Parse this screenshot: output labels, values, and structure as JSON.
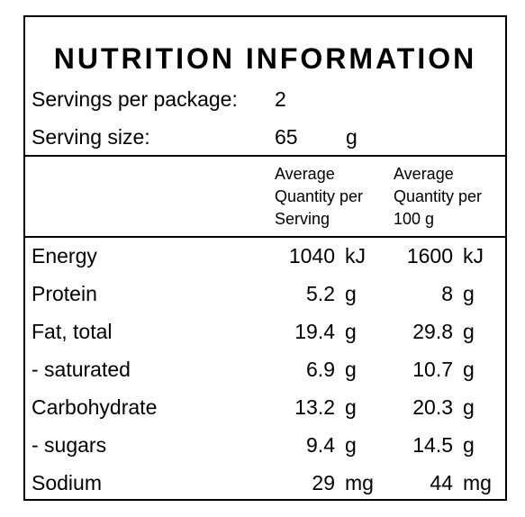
{
  "title": "NUTRITION INFORMATION",
  "servings": {
    "label": "Servings per package:",
    "value": "2"
  },
  "serving_size": {
    "label": "Serving size:",
    "value": "65",
    "unit": "g"
  },
  "columns": {
    "per_serving": [
      "Average",
      "Quantity per",
      "Serving"
    ],
    "per_100g": [
      "Average",
      "Quantity per",
      "100 g"
    ]
  },
  "rows": [
    {
      "name": "Energy",
      "serving": "1040",
      "serving_unit": "kJ",
      "per100": "1600",
      "per100_unit": "kJ"
    },
    {
      "name": "Protein",
      "serving": "5.2",
      "serving_unit": "g",
      "per100": "8",
      "per100_unit": "g"
    },
    {
      "name": "Fat, total",
      "serving": "19.4",
      "serving_unit": "g",
      "per100": "29.8",
      "per100_unit": "g"
    },
    {
      "name": "- saturated",
      "serving": "6.9",
      "serving_unit": "g",
      "per100": "10.7",
      "per100_unit": "g"
    },
    {
      "name": "Carbohydrate",
      "serving": "13.2",
      "serving_unit": "g",
      "per100": "20.3",
      "per100_unit": "g"
    },
    {
      "name": "- sugars",
      "serving": "9.4",
      "serving_unit": "g",
      "per100": "14.5",
      "per100_unit": "g"
    },
    {
      "name": "Sodium",
      "serving": "29",
      "serving_unit": "mg",
      "per100": "44",
      "per100_unit": "mg"
    }
  ]
}
